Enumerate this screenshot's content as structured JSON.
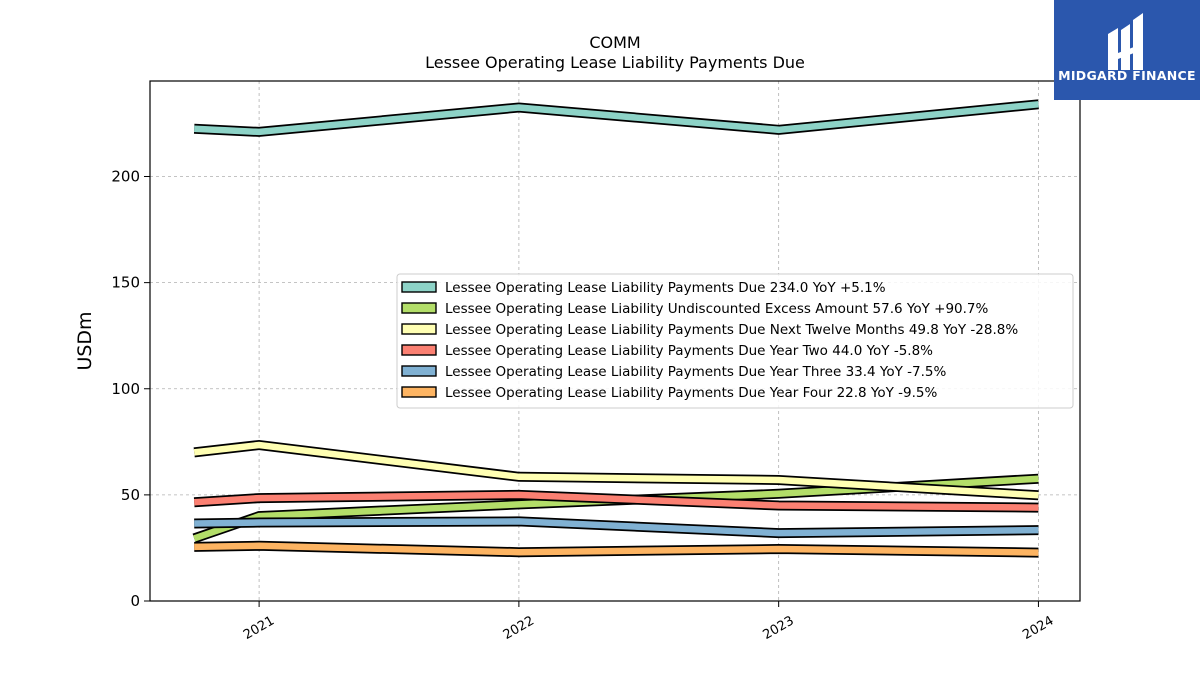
{
  "logo": {
    "text": "MIDGARD FINANCE",
    "bg": "#2b57ad"
  },
  "chart_data": {
    "type": "line",
    "title": "COMM",
    "subtitle": "Lessee Operating Lease Liability Payments Due",
    "ylabel": "USDm",
    "xlabel": "",
    "ylim": [
      0,
      245
    ],
    "yticks": [
      0,
      50,
      100,
      150,
      200
    ],
    "xticks": [
      "2021",
      "2022",
      "2023",
      "2024"
    ],
    "xlim": [
      2020.58,
      2024.16
    ],
    "grid": true,
    "legend_position": "center-right",
    "series": [
      {
        "name": "Lessee Operating Lease Liability Payments Due",
        "label": "Lessee Operating Lease Liability Payments Due  234.0 YoY +5.1%",
        "color": "#8dd3c7",
        "x": [
          2020.75,
          2021.0,
          2022.0,
          2023.0,
          2024.0
        ],
        "y": [
          222.5,
          221.0,
          232.5,
          222.0,
          234.0
        ]
      },
      {
        "name": "Lessee Operating Lease Liability Undiscounted Excess Amount",
        "label": "Lessee Operating Lease Liability Undiscounted Excess Amount  57.6 YoY +90.7%",
        "color": "#b3de69",
        "x": [
          2020.75,
          2021.0,
          2022.0,
          2023.0,
          2024.0
        ],
        "y": [
          29.5,
          40.0,
          45.5,
          50.5,
          57.6
        ]
      },
      {
        "name": "Lessee Operating Lease Liability Payments Due Next Twelve Months",
        "label": "Lessee Operating Lease Liability Payments Due Next Twelve Months  49.8 YoY -28.8%",
        "color": "#ffffb3",
        "x": [
          2020.75,
          2021.0,
          2022.0,
          2023.0,
          2024.0
        ],
        "y": [
          70.0,
          73.5,
          58.5,
          57.0,
          49.8
        ]
      },
      {
        "name": "Lessee Operating Lease Liability Payments Due Year Two",
        "label": "Lessee Operating Lease Liability Payments Due Year Two  44.0 YoY -5.8%",
        "color": "#fb8072",
        "x": [
          2020.75,
          2021.0,
          2022.0,
          2023.0,
          2024.0
        ],
        "y": [
          46.5,
          48.5,
          50.0,
          45.0,
          44.0
        ]
      },
      {
        "name": "Lessee Operating Lease Liability Payments Due Year Three",
        "label": "Lessee Operating Lease Liability Payments Due Year Three  33.4 YoY -7.5%",
        "color": "#80b1d3",
        "x": [
          2020.75,
          2021.0,
          2022.0,
          2023.0,
          2024.0
        ],
        "y": [
          36.5,
          37.0,
          37.5,
          32.0,
          33.4
        ]
      },
      {
        "name": "Lessee Operating Lease Liability Payments Due Year Four",
        "label": "Lessee Operating Lease Liability Payments Due Year Four  22.8 YoY -9.5%",
        "color": "#fdb462",
        "x": [
          2020.75,
          2021.0,
          2022.0,
          2023.0,
          2024.0
        ],
        "y": [
          25.5,
          26.0,
          23.0,
          24.5,
          22.8
        ]
      }
    ]
  }
}
